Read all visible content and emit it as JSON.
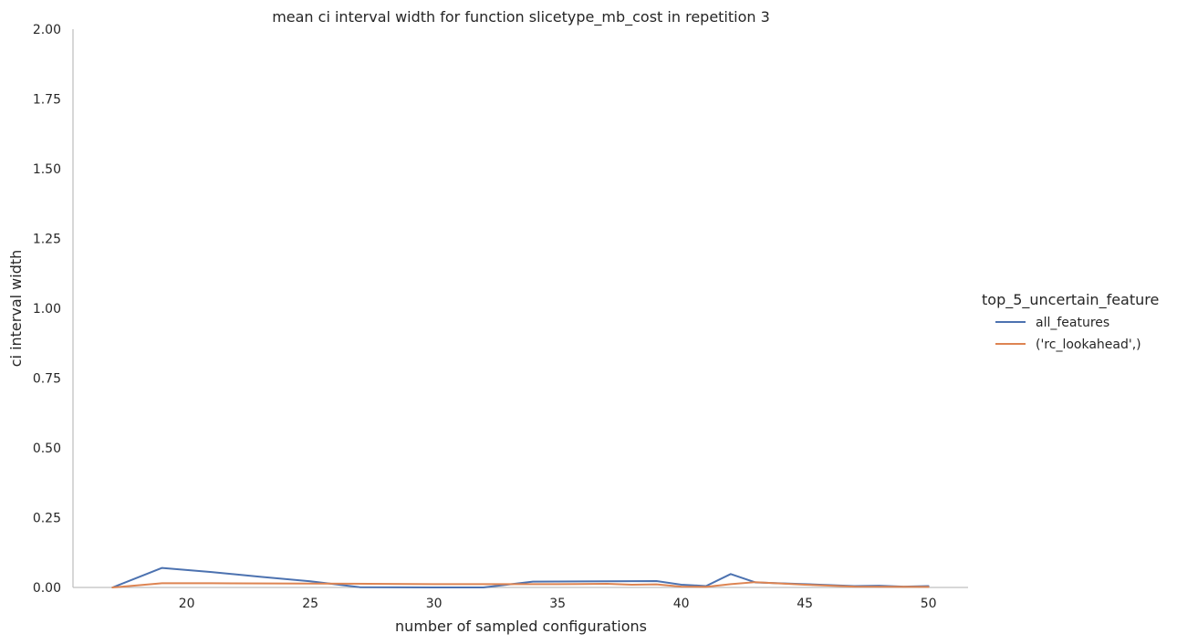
{
  "chart_data": {
    "type": "line",
    "title": "mean ci interval width for function slicetype_mb_cost in repetition 3",
    "xlabel": "number of sampled configurations",
    "ylabel": "ci interval width",
    "xlim": [
      15.4,
      51.6
    ],
    "ylim": [
      0,
      2
    ],
    "xticks": [
      20,
      25,
      30,
      35,
      40,
      45,
      50
    ],
    "yticks": [
      "0.00",
      "0.25",
      "0.50",
      "0.75",
      "1.00",
      "1.25",
      "1.50",
      "1.75",
      "2.00"
    ],
    "grid": false,
    "legend": {
      "title": "top_5_uncertain_feature",
      "placement": "right"
    },
    "series": [
      {
        "name": "all_features",
        "color": "#4c72b0",
        "x": [
          17,
          19,
          21,
          23,
          25,
          27,
          30,
          32,
          34,
          37,
          39,
          40,
          41,
          42,
          43,
          45,
          47,
          48,
          49,
          50
        ],
        "y": [
          0.0,
          0.07,
          0.055,
          0.038,
          0.022,
          0.001,
          0.0,
          0.0,
          0.021,
          0.022,
          0.023,
          0.01,
          0.005,
          0.048,
          0.018,
          0.012,
          0.005,
          0.006,
          0.003,
          0.005
        ]
      },
      {
        "name": "('rc_lookahead',)",
        "color": "#dd8452",
        "x": [
          17,
          19,
          21,
          25,
          30,
          35,
          37,
          38,
          39,
          40,
          41,
          42,
          43,
          45,
          47,
          50
        ],
        "y": [
          0.0,
          0.015,
          0.015,
          0.014,
          0.012,
          0.012,
          0.013,
          0.01,
          0.011,
          0.003,
          0.002,
          0.012,
          0.019,
          0.01,
          0.003,
          0.002
        ]
      }
    ]
  }
}
